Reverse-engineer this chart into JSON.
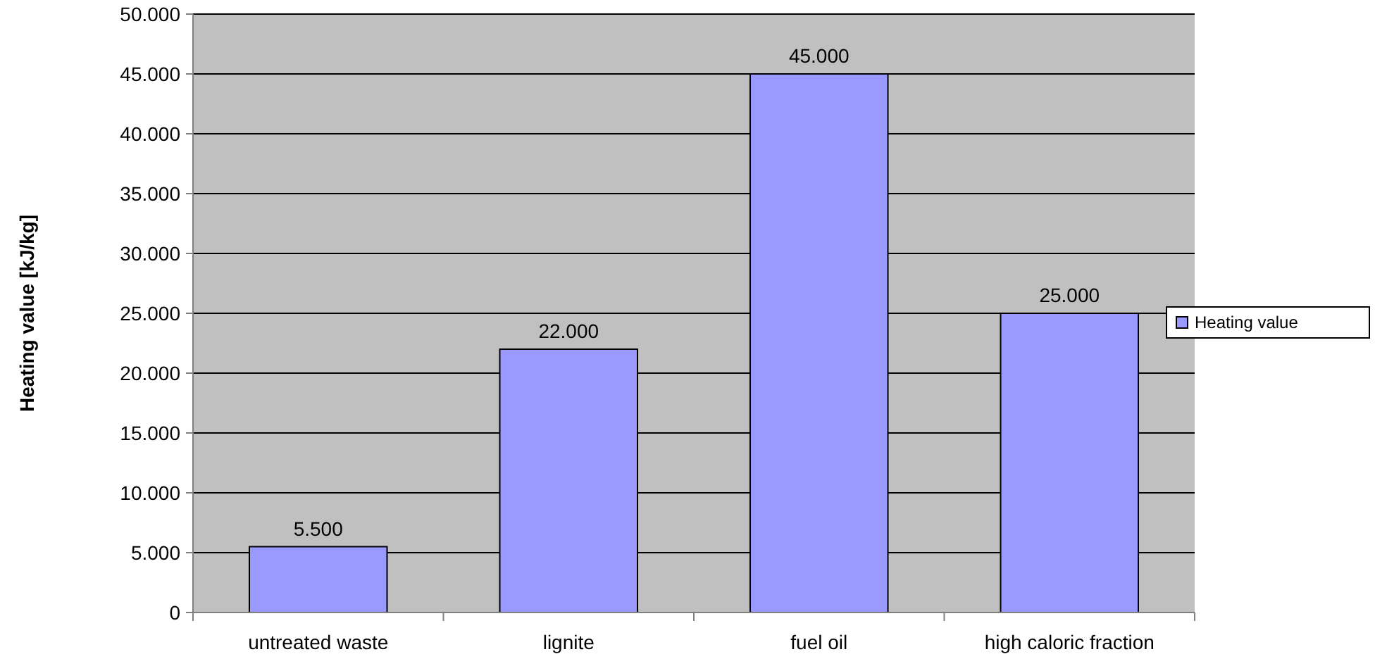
{
  "chart_data": {
    "type": "bar",
    "ylabel": "Heating value [kJ/kg]",
    "categories": [
      "untreated waste",
      "lignite",
      "fuel oil",
      "high caloric fraction"
    ],
    "series": [
      {
        "name": "Heating value",
        "color": "#9999ff",
        "values": [
          5500,
          22000,
          45000,
          25000
        ],
        "value_labels": [
          "5.500",
          "22.000",
          "45.000",
          "25.000"
        ]
      }
    ],
    "ylim": [
      0,
      50000
    ],
    "yticks": [
      {
        "value": 0,
        "label": "0"
      },
      {
        "value": 5000,
        "label": "5.000"
      },
      {
        "value": 10000,
        "label": "10.000"
      },
      {
        "value": 15000,
        "label": "15.000"
      },
      {
        "value": 20000,
        "label": "20.000"
      },
      {
        "value": 25000,
        "label": "25.000"
      },
      {
        "value": 30000,
        "label": "30.000"
      },
      {
        "value": 35000,
        "label": "35.000"
      },
      {
        "value": 40000,
        "label": "40.000"
      },
      {
        "value": 45000,
        "label": "45.000"
      },
      {
        "value": 50000,
        "label": "50.000"
      }
    ],
    "grid": "y",
    "legend": "right"
  }
}
